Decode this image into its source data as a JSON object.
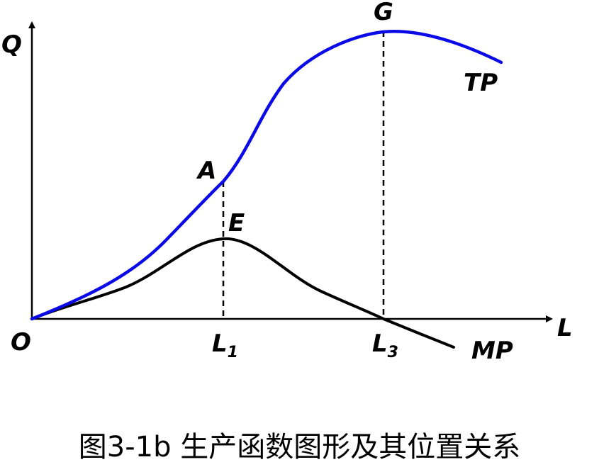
{
  "diagram": {
    "axes": {
      "y_label": "Q",
      "x_label": "L",
      "origin_label": "O"
    },
    "curves": {
      "tp": {
        "label": "TP",
        "color": "#0a0ae6"
      },
      "mp": {
        "label": "MP",
        "color": "#000000"
      }
    },
    "points": {
      "a": "A",
      "e": "E",
      "g": "G"
    },
    "ticks": {
      "l1": {
        "main": "L",
        "sub": "1"
      },
      "l3": {
        "main": "L",
        "sub": "3"
      }
    }
  },
  "caption": "图3-1b  生产函数图形及其位置关系"
}
